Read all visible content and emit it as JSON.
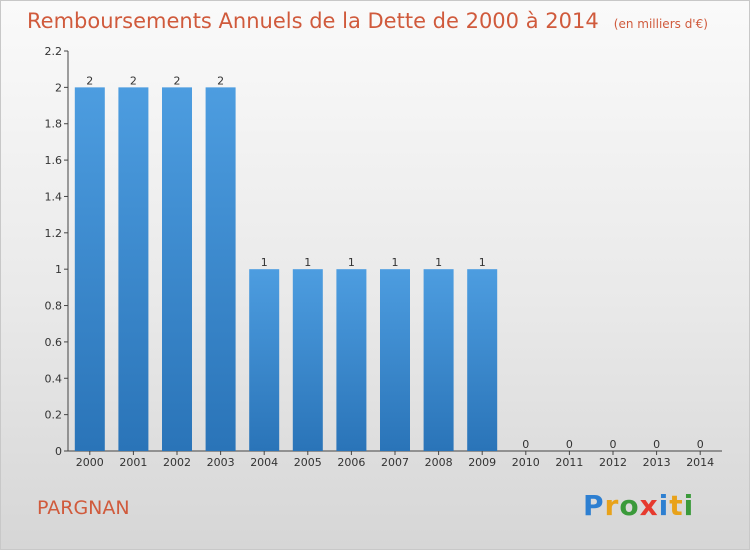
{
  "title": "Remboursements Annuels de la Dette de 2000 à 2014",
  "unit": "(en milliers d'€)",
  "commune": "PARGNAN",
  "logo": {
    "letters": [
      "P",
      "r",
      "o",
      "x",
      "i",
      "t",
      "i"
    ],
    "colors": [
      "#2d7fd1",
      "#e8a21a",
      "#3a9a3a",
      "#e63a2e",
      "#2d7fd1",
      "#e8a21a",
      "#3a9a3a"
    ]
  },
  "colors": {
    "bar": "#4d9de0",
    "bar_dark": "#2a74b8",
    "title": "#d05a3c"
  },
  "chart_data": {
    "type": "bar",
    "title": "Remboursements Annuels de la Dette de 2000 à 2014",
    "xlabel": "",
    "ylabel": "",
    "categories": [
      "2000",
      "2001",
      "2002",
      "2003",
      "2004",
      "2005",
      "2006",
      "2007",
      "2008",
      "2009",
      "2010",
      "2011",
      "2012",
      "2013",
      "2014"
    ],
    "values": [
      2,
      2,
      2,
      2,
      1,
      1,
      1,
      1,
      1,
      1,
      0,
      0,
      0,
      0,
      0
    ],
    "data_labels": [
      "2",
      "2",
      "2",
      "2",
      "1",
      "1",
      "1",
      "1",
      "1",
      "1",
      "0",
      "0",
      "0",
      "0",
      "0"
    ],
    "ylim": [
      0,
      2.2
    ],
    "y_ticks": [
      0,
      0.2,
      0.4,
      0.6,
      0.8,
      1,
      1.2,
      1.4,
      1.6,
      1.8,
      2,
      2.2
    ],
    "y_tick_labels": [
      "0",
      "0.2",
      "0.4",
      "0.6",
      "0.8",
      "1",
      "1.2",
      "1.4",
      "1.6",
      "1.8",
      "2",
      "2.2"
    ],
    "grid": false,
    "legend": "none"
  }
}
